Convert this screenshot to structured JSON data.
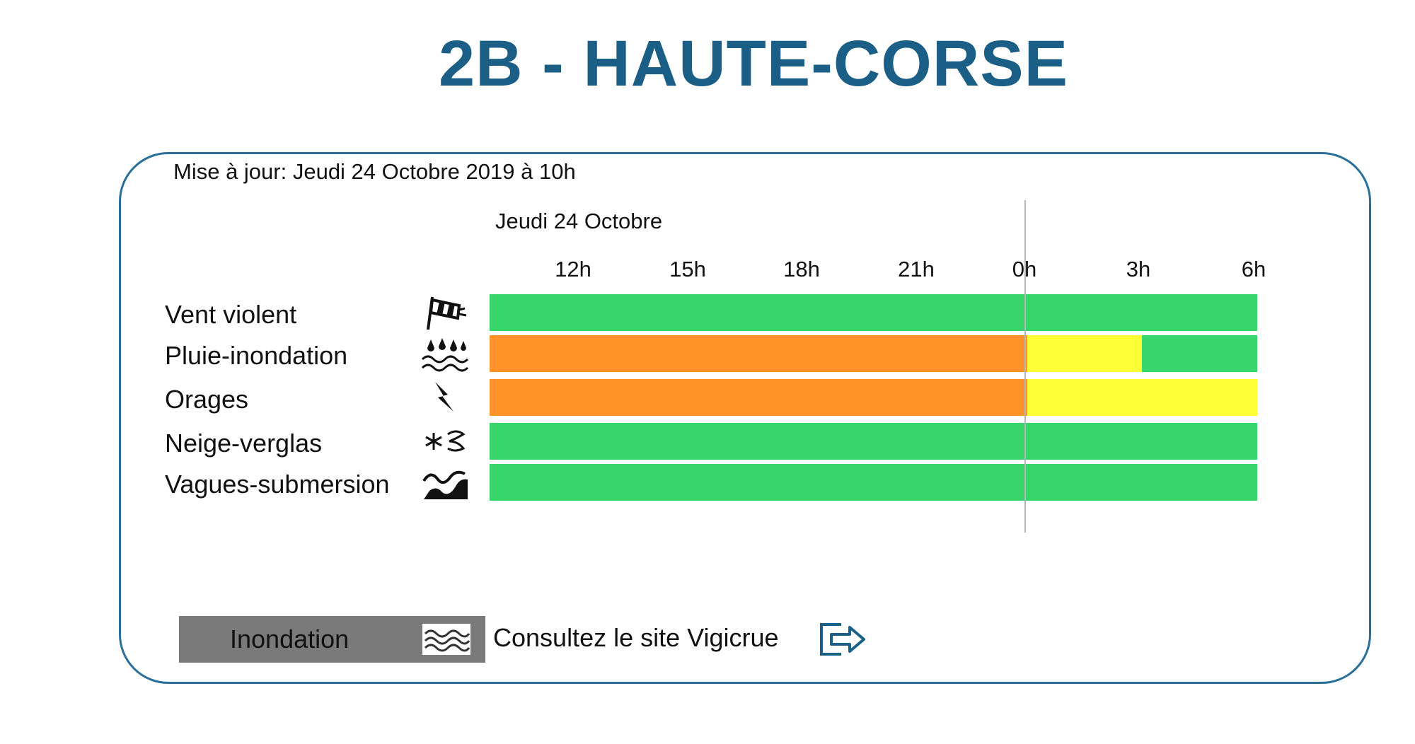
{
  "header": {
    "title": "2B - HAUTE-CORSE",
    "accent_color": "#1b5e86"
  },
  "panel": {
    "update_text": "Mise à jour: Jeudi 24 Octobre 2019 à 10h",
    "day_label": "Jeudi 24 Octobre"
  },
  "timeline": {
    "hours": [
      "12h",
      "15h",
      "18h",
      "21h",
      "0h",
      "3h",
      "6h"
    ],
    "start_hour": 10,
    "end_hour": 30,
    "colors": {
      "vert": "#37d56a",
      "jaune": "#ffff37",
      "orange": "#ff9229"
    }
  },
  "risks": [
    {
      "label": "Vent violent",
      "icon": "wind-sock-icon",
      "segments": [
        {
          "from": 10,
          "to": 30,
          "level": "vert"
        }
      ]
    },
    {
      "label": "Pluie-inondation",
      "icon": "rain-flood-icon",
      "segments": [
        {
          "from": 10,
          "to": 24,
          "level": "orange"
        },
        {
          "from": 24,
          "to": 27,
          "level": "jaune"
        },
        {
          "from": 27,
          "to": 30,
          "level": "vert"
        }
      ]
    },
    {
      "label": "Orages",
      "icon": "lightning-icon",
      "segments": [
        {
          "from": 10,
          "to": 24,
          "level": "orange"
        },
        {
          "from": 24,
          "to": 30,
          "level": "jaune"
        }
      ]
    },
    {
      "label": "Neige-verglas",
      "icon": "snow-ice-icon",
      "segments": [
        {
          "from": 10,
          "to": 30,
          "level": "vert"
        }
      ]
    },
    {
      "label": "Vagues-submersion",
      "icon": "wave-icon",
      "segments": [
        {
          "from": 10,
          "to": 30,
          "level": "vert"
        }
      ]
    }
  ],
  "footer": {
    "inondation_label": "Inondation",
    "inondation_icon": "flood-waves-icon",
    "vigicrue_text": "Consultez le site Vigicrue",
    "vigicrue_icon": "exit-arrow-icon"
  }
}
